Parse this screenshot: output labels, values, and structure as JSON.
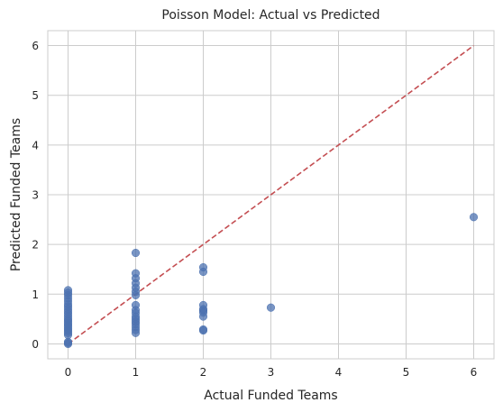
{
  "chart_data": {
    "type": "scatter",
    "title": "Poisson Model: Actual vs Predicted",
    "xlabel": "Actual Funded Teams",
    "ylabel": "Predicted Funded Teams",
    "xlim": [
      -0.3,
      6.3
    ],
    "ylim": [
      -0.3,
      6.3
    ],
    "xticks": [
      "0",
      "1",
      "2",
      "3",
      "4",
      "5",
      "6"
    ],
    "yticks": [
      "0",
      "1",
      "2",
      "3",
      "4",
      "5",
      "6"
    ],
    "grid": true,
    "point_color": "#4c72b0",
    "reference_line": {
      "x": [
        0,
        6
      ],
      "y": [
        0,
        6
      ],
      "style": "dashed",
      "color": "#c44e52"
    },
    "points": [
      {
        "x": 0,
        "y": 0.0
      },
      {
        "x": 0,
        "y": 0.02
      },
      {
        "x": 0,
        "y": 0.04
      },
      {
        "x": 0,
        "y": 0.18
      },
      {
        "x": 0,
        "y": 0.22
      },
      {
        "x": 0,
        "y": 0.26
      },
      {
        "x": 0,
        "y": 0.3
      },
      {
        "x": 0,
        "y": 0.34
      },
      {
        "x": 0,
        "y": 0.38
      },
      {
        "x": 0,
        "y": 0.42
      },
      {
        "x": 0,
        "y": 0.46
      },
      {
        "x": 0,
        "y": 0.5
      },
      {
        "x": 0,
        "y": 0.55
      },
      {
        "x": 0,
        "y": 0.6
      },
      {
        "x": 0,
        "y": 0.65
      },
      {
        "x": 0,
        "y": 0.7
      },
      {
        "x": 0,
        "y": 0.75
      },
      {
        "x": 0,
        "y": 0.8
      },
      {
        "x": 0,
        "y": 0.86
      },
      {
        "x": 0,
        "y": 0.92
      },
      {
        "x": 0,
        "y": 0.98
      },
      {
        "x": 0,
        "y": 1.03
      },
      {
        "x": 0,
        "y": 1.08
      },
      {
        "x": 1,
        "y": 0.22
      },
      {
        "x": 1,
        "y": 0.28
      },
      {
        "x": 1,
        "y": 0.34
      },
      {
        "x": 1,
        "y": 0.4
      },
      {
        "x": 1,
        "y": 0.45
      },
      {
        "x": 1,
        "y": 0.5
      },
      {
        "x": 1,
        "y": 0.55
      },
      {
        "x": 1,
        "y": 0.62
      },
      {
        "x": 1,
        "y": 0.68
      },
      {
        "x": 1,
        "y": 0.78
      },
      {
        "x": 1,
        "y": 0.98
      },
      {
        "x": 1,
        "y": 1.05
      },
      {
        "x": 1,
        "y": 1.13
      },
      {
        "x": 1,
        "y": 1.22
      },
      {
        "x": 1,
        "y": 1.32
      },
      {
        "x": 1,
        "y": 1.42
      },
      {
        "x": 1,
        "y": 1.83
      },
      {
        "x": 2,
        "y": 0.27
      },
      {
        "x": 2,
        "y": 0.29
      },
      {
        "x": 2,
        "y": 0.55
      },
      {
        "x": 2,
        "y": 0.63
      },
      {
        "x": 2,
        "y": 0.67
      },
      {
        "x": 2,
        "y": 0.7
      },
      {
        "x": 2,
        "y": 0.78
      },
      {
        "x": 2,
        "y": 1.45
      },
      {
        "x": 2,
        "y": 1.54
      },
      {
        "x": 3,
        "y": 0.73
      },
      {
        "x": 6,
        "y": 2.55
      }
    ]
  }
}
